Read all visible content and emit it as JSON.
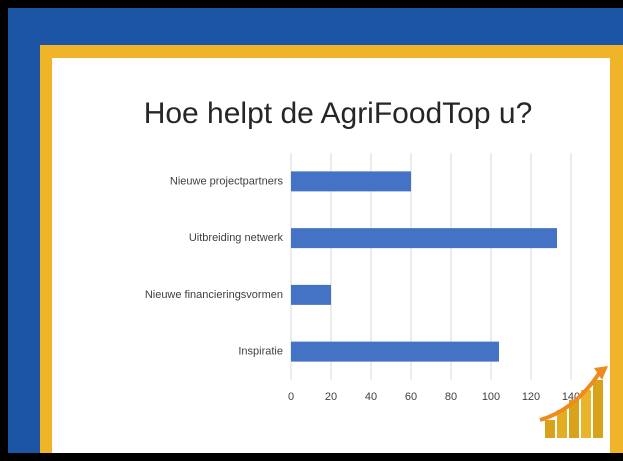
{
  "chart_data": {
    "type": "bar",
    "orientation": "horizontal",
    "title": "Hoe helpt de AgriFoodTop u?",
    "categories": [
      "Nieuwe projectpartners",
      "Uitbreiding netwerk",
      "Nieuwe financieringsvormen",
      "Inspiratie"
    ],
    "values": [
      60,
      133,
      20,
      104
    ],
    "color": "#4472c4",
    "xlim": [
      0,
      140
    ],
    "xticks": [
      0,
      20,
      40,
      60,
      80,
      100,
      120,
      140
    ],
    "grid": true
  }
}
